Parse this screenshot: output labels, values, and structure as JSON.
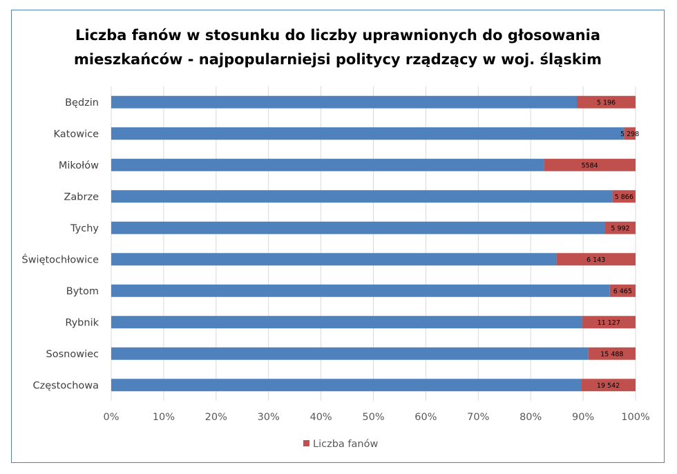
{
  "chart_data": {
    "type": "bar",
    "orientation": "horizontal",
    "stacked": "100%",
    "title_lines": [
      "Liczba fanów w stosunku do liczby uprawnionych do głosowania",
      "mieszkańców - najpopularniejsi politycy rządzący w woj. śląskim"
    ],
    "categories": [
      "Będzin",
      "Katowice",
      "Mikołów",
      "Zabrze",
      "Tychy",
      "Świętochłowice",
      "Bytom",
      "Rybnik",
      "Sosnowiec",
      "Częstochowa"
    ],
    "series": [
      {
        "values": [
          88.8,
          97.8,
          82.5,
          95.6,
          94.2,
          84.9,
          95.1,
          89.8,
          91.0,
          89.6
        ],
        "color": "#4f81bd"
      },
      {
        "name": "Liczba fanów",
        "values": [
          11.2,
          2.2,
          17.5,
          4.4,
          5.8,
          15.1,
          4.9,
          10.2,
          9.0,
          10.4
        ],
        "color": "#c0504d"
      }
    ],
    "data_labels": [
      "5 196",
      "5 298",
      "5584",
      "5 866",
      "5 992",
      "6 143",
      "6 465",
      "11 127",
      "15 488",
      "19 542"
    ],
    "x_ticks": [
      "0%",
      "10%",
      "20%",
      "30%",
      "40%",
      "50%",
      "60%",
      "70%",
      "80%",
      "90%",
      "100%"
    ],
    "xlim": [
      0,
      100
    ],
    "grid": true,
    "legend_position": "bottom",
    "colors": {
      "frame": "#4f81bd",
      "grid": "#d9d9d9"
    }
  }
}
